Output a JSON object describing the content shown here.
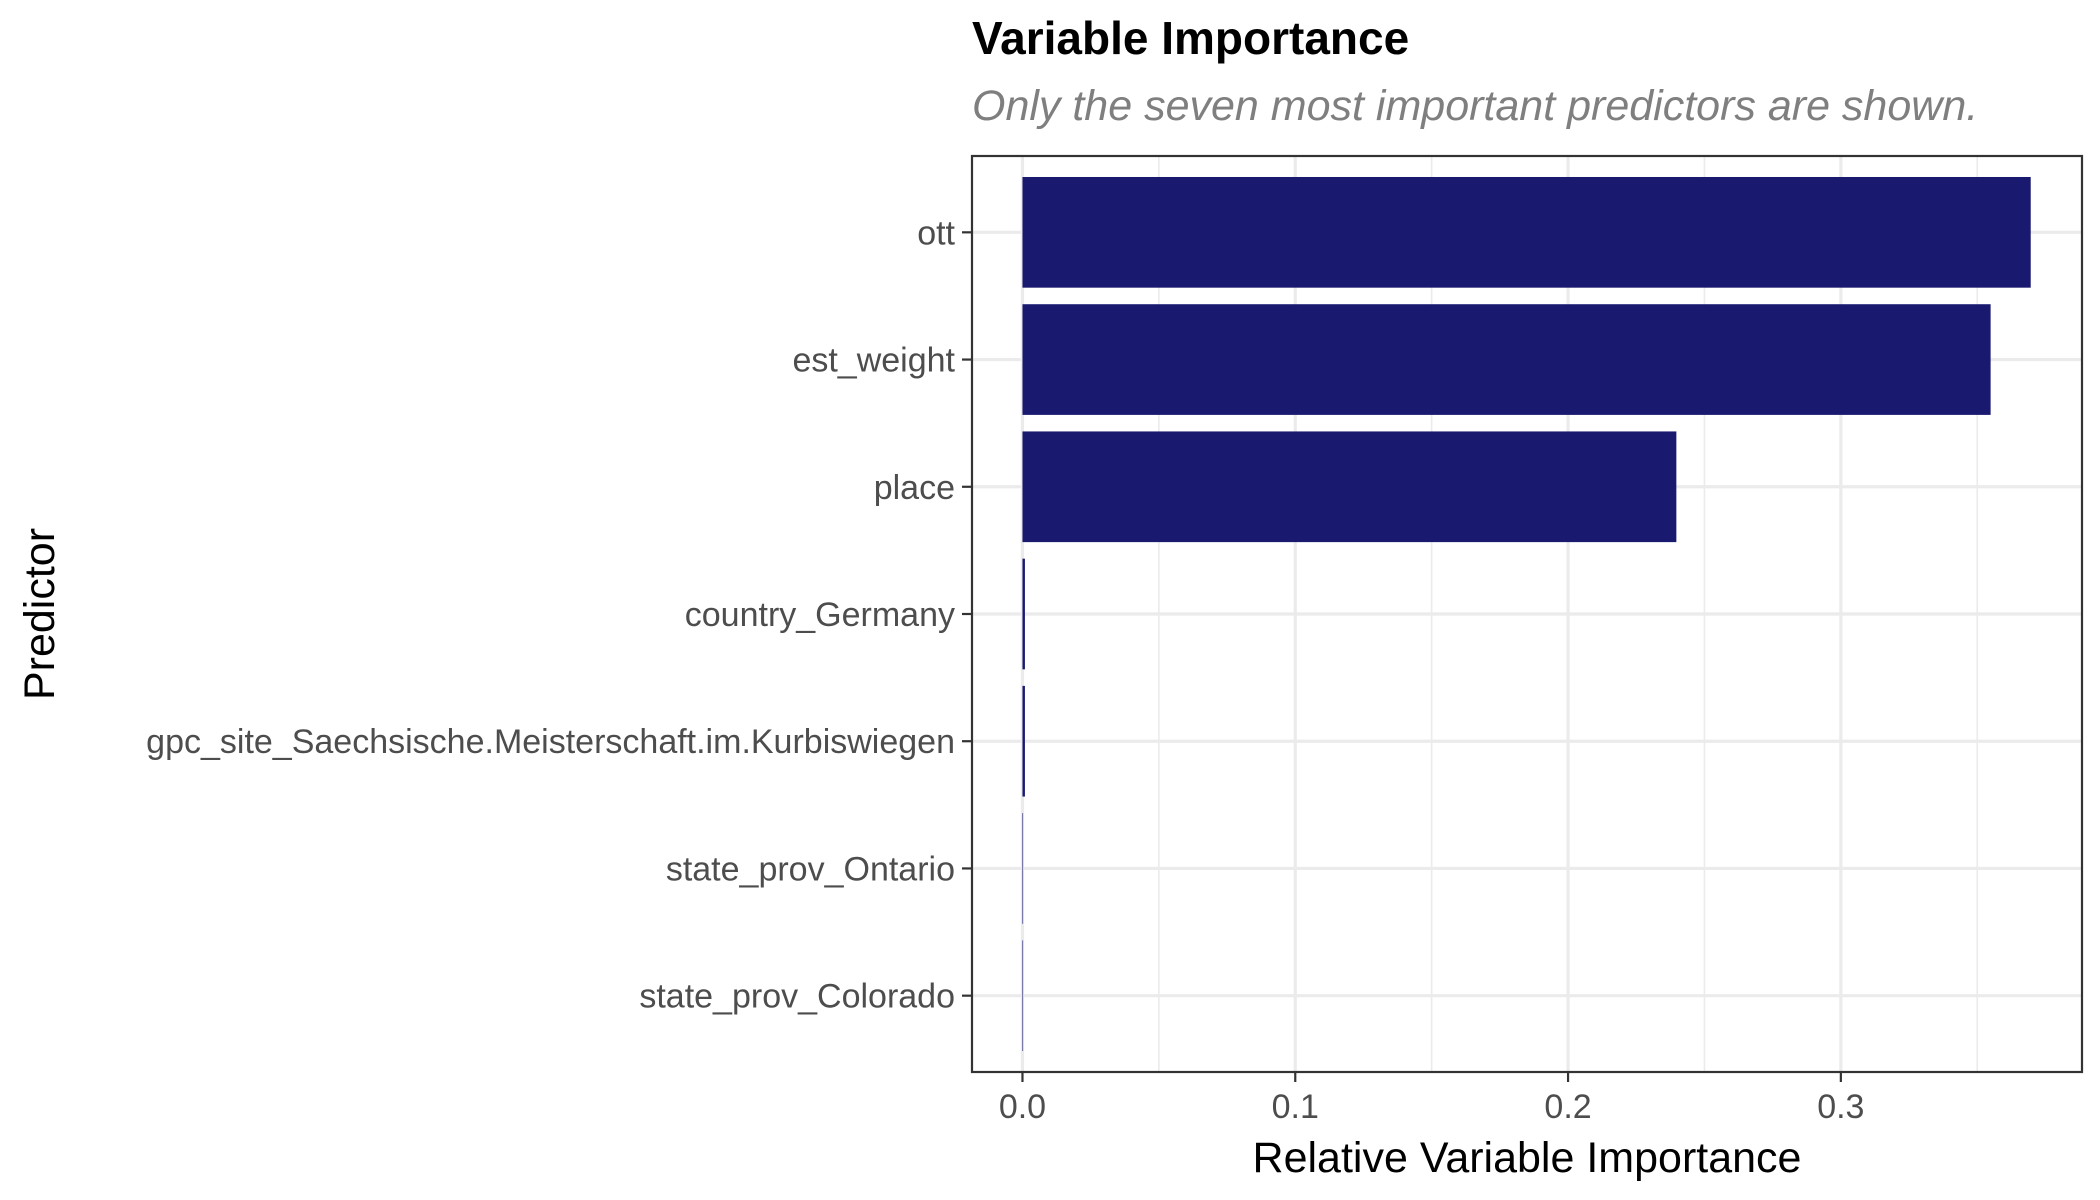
{
  "chart_data": {
    "type": "bar",
    "orientation": "horizontal",
    "title": "Variable Importance",
    "subtitle": "Only the seven most important predictors are shown.",
    "xlabel": "Relative Variable Importance",
    "ylabel": "Predictor",
    "xlim": [
      -0.0185,
      0.3884
    ],
    "xticks": [
      0.0,
      0.1,
      0.2,
      0.3
    ],
    "xtick_labels": [
      "0.0",
      "0.1",
      "0.2",
      "0.3"
    ],
    "grid": true,
    "bar_color": "#191970",
    "categories": [
      "ott",
      "est_weight",
      "place",
      "country_Germany",
      "gpc_site_Saechsische.Meisterschaft.im.Kurbiswiegen",
      "state_prov_Ontario",
      "state_prov_Colorado"
    ],
    "values": [
      0.3696,
      0.3549,
      0.2397,
      0.0009,
      0.0009,
      0.0001,
      0.0001
    ]
  }
}
